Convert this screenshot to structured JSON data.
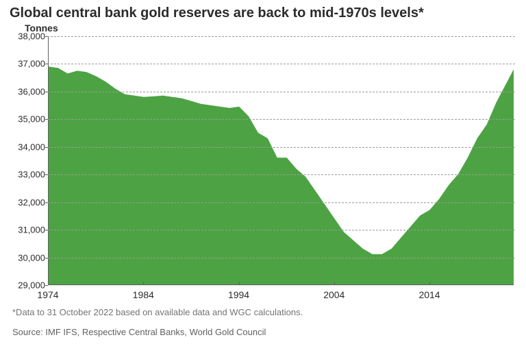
{
  "chart": {
    "type": "area",
    "title": "Global central bank gold reserves are back to mid-1970s levels*",
    "ylabel": "Tonnes",
    "footnote": "*Data to 31 October 2022 based on available data and WGC calculations.",
    "source": "Source: IMF IFS, Respective Central Banks, World Gold Council",
    "background_color": "#ffffff",
    "grid_color": "#9a9a9a",
    "axis_color": "#606060",
    "text_color": "#2b2b2b",
    "fill_color": "#4da343",
    "title_fontsize": 20,
    "ylabel_fontsize": 14,
    "tick_fontsize": 13,
    "footnote_color": "#737373",
    "source_color": "#606060",
    "ylim": [
      29000,
      38000
    ],
    "ytick_step": 1000,
    "yticks": [
      29000,
      30000,
      31000,
      32000,
      33000,
      34000,
      35000,
      36000,
      37000,
      38000
    ],
    "ytick_labels": [
      "29,000",
      "30,000",
      "31,000",
      "32,000",
      "33,000",
      "34,000",
      "35,000",
      "36,000",
      "37,000",
      "38,000"
    ],
    "xlim": [
      1974,
      2022.83
    ],
    "xticks": [
      1974,
      1984,
      1994,
      2004,
      2014
    ],
    "xtick_labels": [
      "1974",
      "1984",
      "1994",
      "2004",
      "2014"
    ],
    "series": {
      "x": [
        1974,
        1975,
        1976,
        1977,
        1978,
        1979,
        1980,
        1981,
        1982,
        1983,
        1984,
        1985,
        1986,
        1987,
        1988,
        1989,
        1990,
        1991,
        1992,
        1993,
        1994,
        1995,
        1996,
        1997,
        1998,
        1999,
        2000,
        2001,
        2002,
        2003,
        2004,
        2005,
        2006,
        2007,
        2008,
        2009,
        2010,
        2011,
        2012,
        2013,
        2014,
        2015,
        2016,
        2017,
        2018,
        2019,
        2020,
        2021,
        2022.83
      ],
      "y": [
        36900,
        36850,
        36650,
        36750,
        36700,
        36550,
        36350,
        36100,
        35900,
        35850,
        35800,
        35820,
        35850,
        35800,
        35750,
        35650,
        35550,
        35500,
        35450,
        35400,
        35450,
        35100,
        34500,
        34300,
        33600,
        33600,
        33200,
        32900,
        32400,
        31900,
        31400,
        30900,
        30600,
        30300,
        30100,
        30100,
        30300,
        30700,
        31100,
        31500,
        31700,
        32100,
        32600,
        33000,
        33600,
        34300,
        34800,
        35600,
        36800
      ]
    }
  }
}
